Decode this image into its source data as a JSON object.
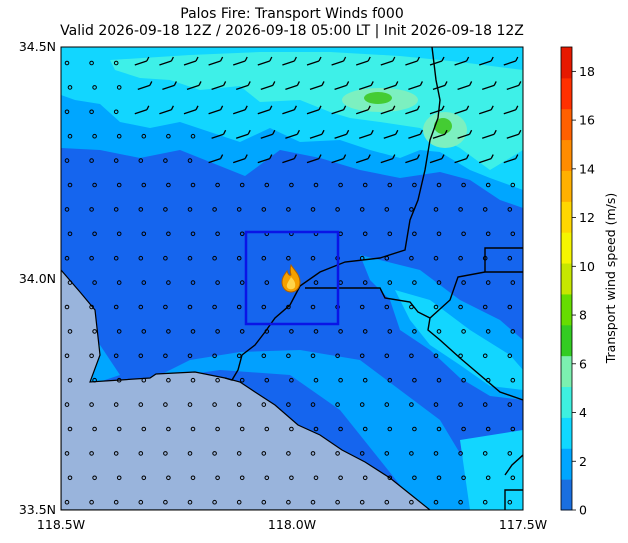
{
  "title_line1": "Palos Fire: Transport Winds f000",
  "title_line2": "Valid 2026-09-18 12Z / 2026-09-18 05:00 LT | Init 2026-09-18 12Z",
  "map": {
    "lat_ticks": [
      "34.5N",
      "34.0N",
      "33.5N"
    ],
    "lon_ticks": [
      "118.5W",
      "118.0W",
      "117.5W"
    ],
    "extent": {
      "lon": [
        -118.5,
        -117.5
      ],
      "lat": [
        33.5,
        34.5
      ]
    },
    "fire_box": {
      "lon": [
        -118.1,
        -117.9
      ],
      "lat": [
        33.9,
        34.1
      ]
    },
    "fire_icon": "fire-icon",
    "wind_symbol": "wind-barb-icon",
    "land_color": "#1565ee",
    "ocean_color": "#99b4dc",
    "box_color": "#0a14e6"
  },
  "colorbar": {
    "label": "Transport wind speed (m/s)",
    "ticks": [
      "0",
      "2",
      "4",
      "6",
      "8",
      "10",
      "12",
      "14",
      "16",
      "18"
    ],
    "range": [
      0,
      19
    ],
    "colors": [
      "#1a6fe0",
      "#00a6ff",
      "#10d8ff",
      "#3ef0e0",
      "#7cf0b0",
      "#33cc22",
      "#66dd00",
      "#c6e600",
      "#f5f500",
      "#ffd700",
      "#ffb000",
      "#ff8c00",
      "#ff6000",
      "#ff3000",
      "#e61900"
    ]
  }
}
